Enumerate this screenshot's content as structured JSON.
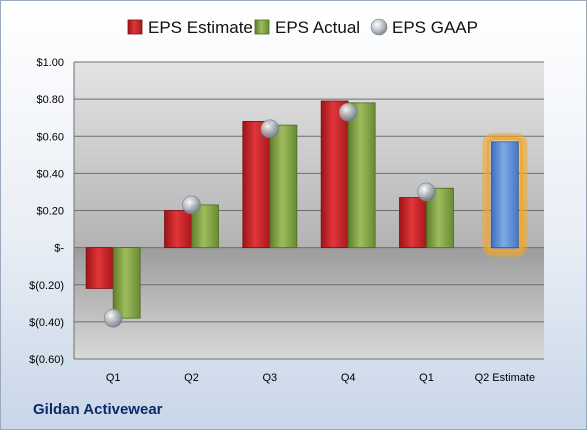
{
  "company": "Gildan Activewear",
  "chart_data": {
    "type": "bar",
    "categories": [
      "Q1",
      "Q2",
      "Q3",
      "Q4",
      "Q1",
      "Q2 Estimate"
    ],
    "series": [
      {
        "name": "EPS Estimate",
        "color": "#d9262b",
        "values": [
          -0.22,
          0.2,
          0.68,
          0.79,
          0.27,
          null
        ]
      },
      {
        "name": "EPS Actual",
        "color": "#8aab4e",
        "values": [
          -0.38,
          0.23,
          0.66,
          0.78,
          0.32,
          null
        ]
      },
      {
        "name": "EPS GAAP",
        "color": "#b9c0cc",
        "values": [
          -0.38,
          0.23,
          0.64,
          0.73,
          0.3,
          null
        ]
      }
    ],
    "estimate": {
      "category": "Q2 Estimate",
      "value": 0.57,
      "color": "#5b8fd4",
      "glow": "#f5a623"
    },
    "ylim": [
      -0.6,
      1.0
    ],
    "yticks": [
      "$(0.60)",
      "$(0.40)",
      "$(0.20)",
      "$-",
      "$0.20",
      "$0.40",
      "$0.60",
      "$0.80",
      "$1.00"
    ],
    "ytick_values": [
      -0.6,
      -0.4,
      -0.2,
      0,
      0.2,
      0.4,
      0.6,
      0.8,
      1.0
    ],
    "legend_position": "top",
    "grid": true
  }
}
